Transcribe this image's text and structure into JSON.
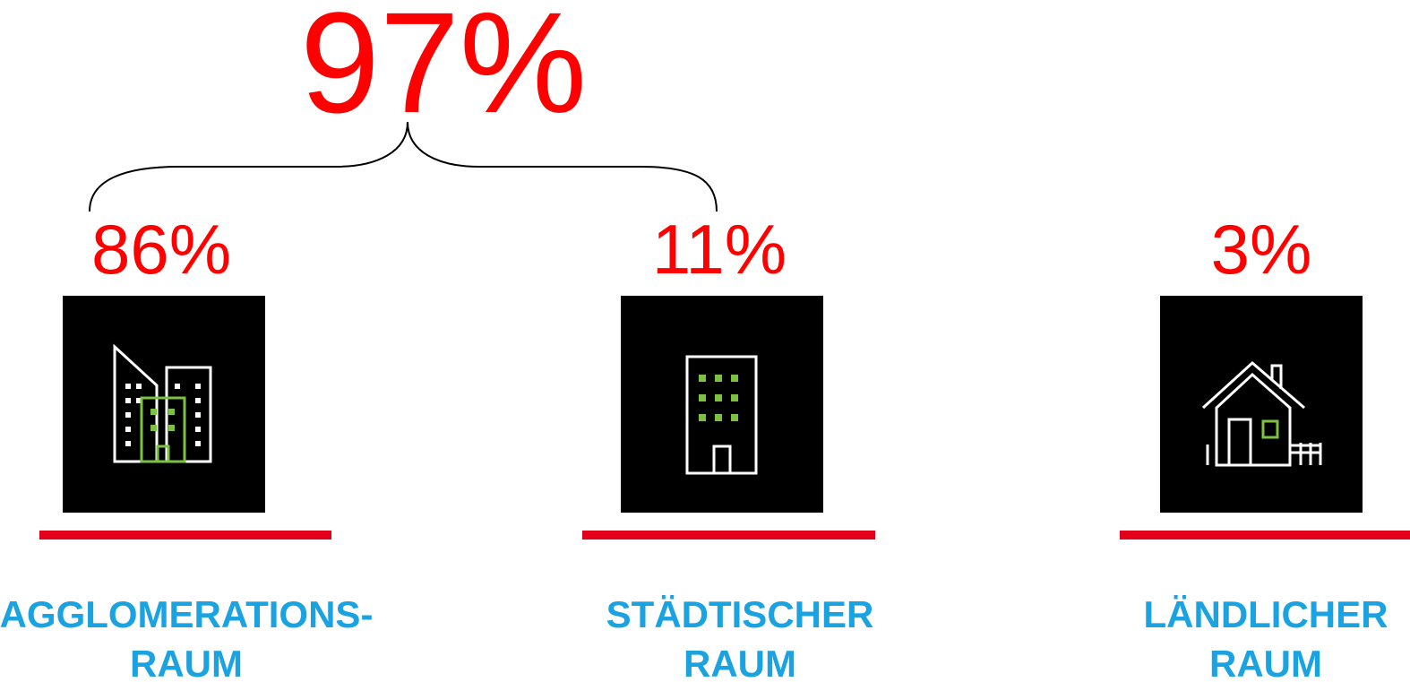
{
  "total": "97%",
  "items": [
    {
      "value": "86%",
      "label": [
        "AGGLOMERATIONS-",
        "RAUM"
      ]
    },
    {
      "value": "11%",
      "label": [
        "STÄDTISCHER",
        "RAUM"
      ]
    },
    {
      "value": "3%",
      "label": [
        "LÄNDLICHER",
        "RAUM"
      ]
    }
  ]
}
